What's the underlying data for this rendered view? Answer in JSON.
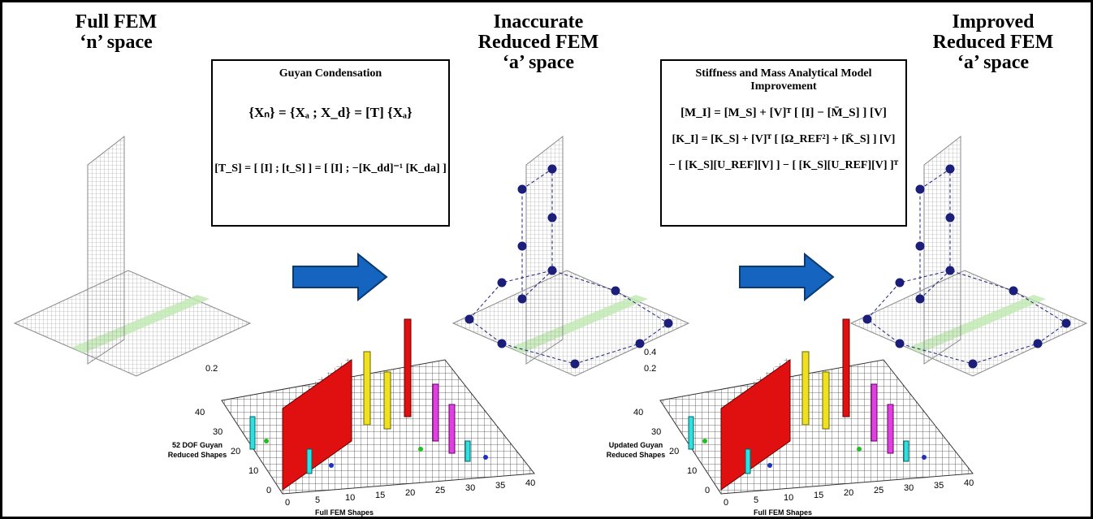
{
  "panels": [
    {
      "title_lines": [
        "Full FEM",
        "‘n’ space"
      ]
    },
    {
      "title_lines": [
        "Inaccurate",
        "Reduced FEM",
        "‘a’ space"
      ]
    },
    {
      "title_lines": [
        "Improved",
        "Reduced FEM",
        "‘a’ space"
      ]
    }
  ],
  "guyan_box": {
    "title": "Guyan Condensation",
    "equations": [
      "{Xₙ} = {Xₐ ; X_d} = [T] {Xₐ}",
      "[T_S] = [ [I] ; [t_S] ] = [ [I] ; −[K_dd]⁻¹ [K_da] ]"
    ]
  },
  "improvement_box": {
    "title_lines": [
      "Stiffness and Mass Analytical Model",
      "Improvement"
    ],
    "equations": [
      "[M_I] = [M_S] + [V]ᵀ [ [I] − [M̄_S] ] [V]",
      "[K_I] = [K_S] + [V]ᵀ [ [Ω_REF²] + [K̄_S] ] [V]",
      "− [ [K_S][U_REF][V] ] − [ [K_S][U_REF][V] ]ᵀ"
    ]
  },
  "charts": [
    {
      "z_ticks": [
        0.2
      ],
      "y_ticks": [
        0,
        10,
        20,
        30,
        40
      ],
      "x_ticks": [
        0,
        5,
        10,
        15,
        20,
        25,
        30,
        35,
        40
      ],
      "y_label": [
        "52 DOF Guyan",
        "Reduced Shapes"
      ],
      "x_label": "Full FEM Shapes"
    },
    {
      "z_ticks": [
        0.2,
        0.4
      ],
      "y_ticks": [
        0,
        10,
        20,
        30,
        40
      ],
      "x_ticks": [
        0,
        5,
        10,
        15,
        20,
        25,
        30,
        35,
        40
      ],
      "y_label": [
        "Updated Guyan",
        "Reduced Shapes"
      ],
      "x_label": "Full FEM Shapes"
    }
  ]
}
